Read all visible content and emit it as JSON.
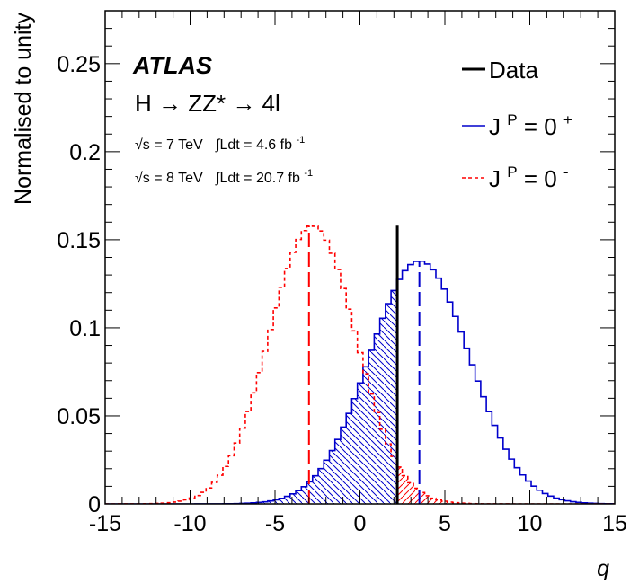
{
  "chart_data": {
    "type": "line",
    "title": "",
    "xlabel": "q",
    "ylabel": "Normalised to unity",
    "xlim": [
      -15,
      15
    ],
    "ylim": [
      0,
      0.28
    ],
    "xticks": [
      -15,
      -10,
      -5,
      0,
      5,
      10,
      15
    ],
    "xtick_labels": [
      "-15",
      "-10",
      "-5",
      "0",
      "5",
      "10",
      "15"
    ],
    "yticks": [
      0,
      0.05,
      0.1,
      0.15,
      0.2,
      0.25
    ],
    "ytick_labels": [
      "0",
      "0.05",
      "0.1",
      "0.15",
      "0.2",
      "0.25"
    ],
    "annotations": {
      "experiment": "ATLAS",
      "process": "H → ZZ* → 4l",
      "lumi_7": {
        "sqrt_s": "√s = 7 TeV",
        "integral": "∫Ldt = 4.6 fb",
        "unit_exp": "-1"
      },
      "lumi_8": {
        "sqrt_s": "√s = 8 TeV",
        "integral": "∫Ldt = 20.7 fb",
        "unit_exp": "-1"
      }
    },
    "legend": {
      "position": "top-right",
      "entries": [
        {
          "label": "Data",
          "style": "solid",
          "color": "#000000"
        },
        {
          "label_base": "J",
          "label_sup": "P",
          "label_eq": " = 0",
          "label_parity": "+",
          "style": "solid",
          "color": "#0000cc"
        },
        {
          "label_base": "J",
          "label_sup": "P",
          "label_eq": " = 0",
          "label_parity": "-",
          "style": "dashed",
          "color": "#ff0000"
        }
      ]
    },
    "observed_q": 2.2,
    "observed_height": 0.158,
    "series": [
      {
        "name": "J^P = 0^+",
        "color": "#0000cc",
        "style": "solid",
        "shape": "gaussian",
        "mean": 3.5,
        "sigma": 2.95,
        "peak": 0.138,
        "median": 3.5,
        "median_height": 0.138,
        "bin_width": 0.33
      },
      {
        "name": "J^P = 0^-",
        "color": "#ff0000",
        "style": "dashed",
        "shape": "gaussian",
        "mean": -2.8,
        "sigma": 2.55,
        "peak": 0.158,
        "median": -3.0,
        "median_height": 0.158,
        "bin_width": 0.33
      }
    ],
    "shaded_regions": [
      {
        "series": "J^P = 0^+",
        "from": -15,
        "to": 2.2,
        "color": "#0000cc",
        "hatch": "backslash"
      },
      {
        "series": "J^P = 0^-",
        "from": 2.2,
        "to": 15,
        "color": "#ff0000",
        "hatch": "slash"
      }
    ]
  }
}
